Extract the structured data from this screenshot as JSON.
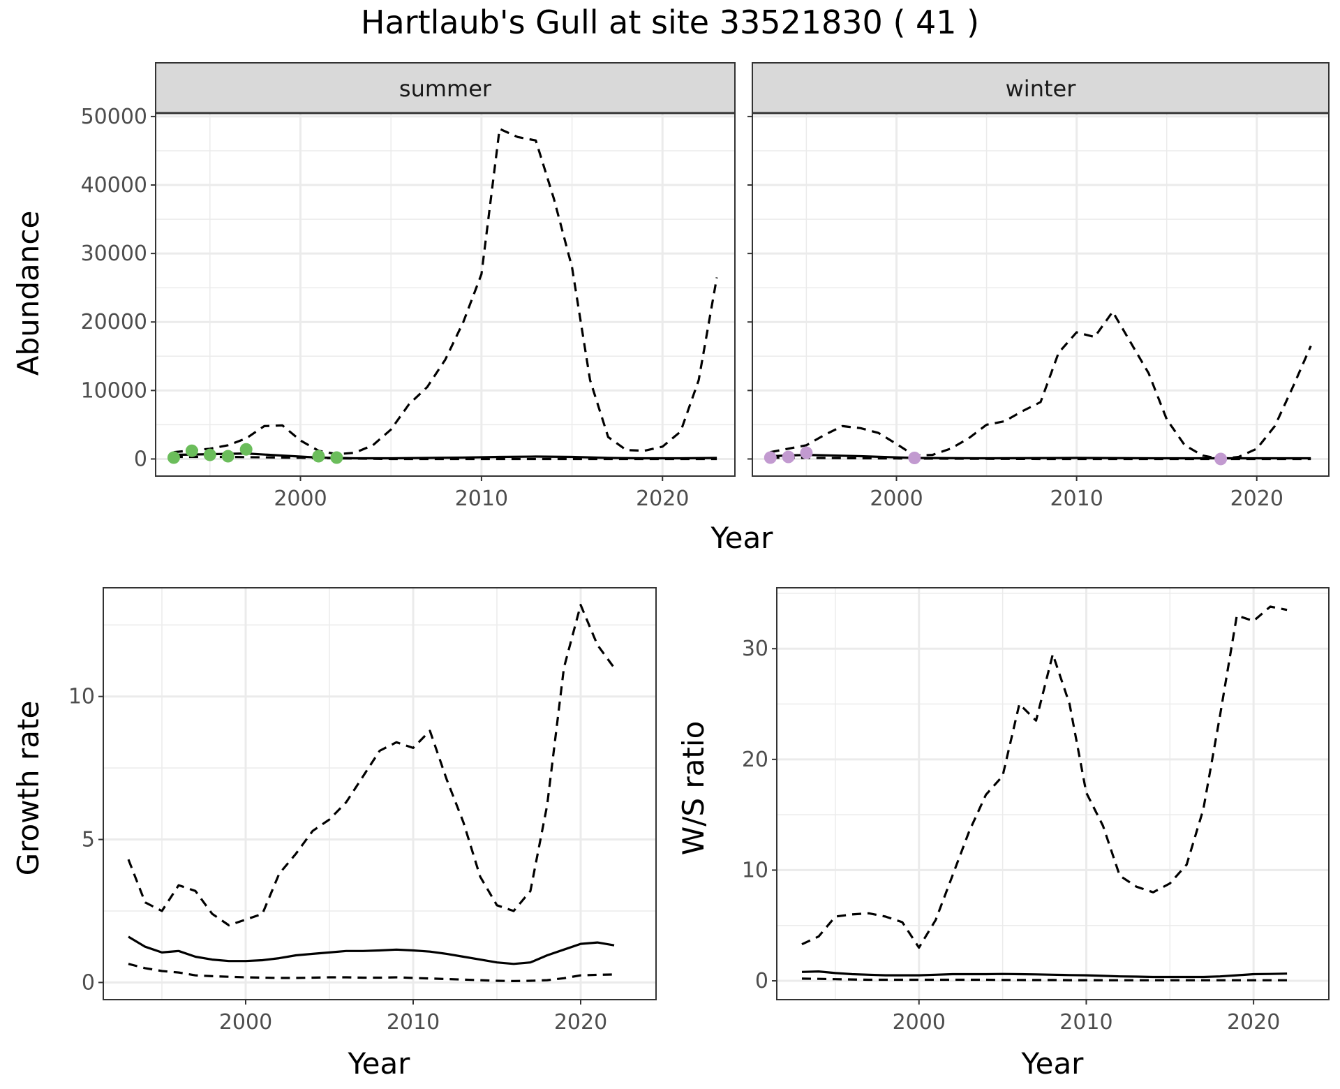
{
  "title": "Hartlaub's Gull at site 33521830 ( 41 )",
  "colors": {
    "summer_points": "#6bbd5b",
    "winter_points": "#c29ad0",
    "line": "#000000",
    "strip_fill": "#d9d9d9",
    "grid": "#ebebeb"
  },
  "chart_data": [
    {
      "type": "line",
      "facet": "summer",
      "xlabel": "Year",
      "ylabel": "Abundance",
      "xlim": [
        1992,
        2024
      ],
      "ylim": [
        -2500,
        50500
      ],
      "x_ticks": [
        2000,
        2010,
        2020
      ],
      "y_ticks": [
        0,
        10000,
        20000,
        30000,
        40000,
        50000
      ],
      "grid": true,
      "series": [
        {
          "style": "solid",
          "x": [
            1993,
            1995,
            1997,
            1999,
            2001,
            2003,
            2005,
            2007,
            2009,
            2011,
            2013,
            2015,
            2017,
            2019,
            2021,
            2023
          ],
          "values": [
            600,
            700,
            800,
            500,
            200,
            100,
            100,
            150,
            200,
            300,
            350,
            300,
            150,
            100,
            100,
            150
          ]
        },
        {
          "style": "dashed",
          "x": [
            1993,
            1995,
            1996,
            1997,
            1998,
            1999,
            2000,
            2001,
            2002,
            2003,
            2004,
            2005,
            2006,
            2007,
            2008,
            2009,
            2010,
            2011,
            2012,
            2013,
            2014,
            2015,
            2016,
            2017,
            2018,
            2019,
            2020,
            2021,
            2022,
            2023
          ],
          "values": [
            1000,
            1500,
            2000,
            3000,
            4800,
            4900,
            2700,
            1200,
            700,
            900,
            2000,
            4300,
            8000,
            10500,
            14500,
            20000,
            27000,
            48200,
            47000,
            46500,
            38000,
            28000,
            11500,
            3200,
            1300,
            1200,
            1800,
            4000,
            11500,
            26500
          ]
        },
        {
          "style": "dashed",
          "x": [
            1993,
            1996,
            1999,
            2002,
            2005,
            2008,
            2011,
            2014,
            2017,
            2020,
            2023
          ],
          "values": [
            300,
            300,
            200,
            100,
            0,
            0,
            0,
            0,
            0,
            0,
            0
          ]
        }
      ],
      "points": {
        "x": [
          1993,
          1994,
          1995,
          1996,
          1997,
          2001,
          2002
        ],
        "values": [
          200,
          1200,
          600,
          400,
          1400,
          400,
          200
        ]
      }
    },
    {
      "type": "line",
      "facet": "winter",
      "xlabel": "Year",
      "ylabel": "Abundance",
      "xlim": [
        1992,
        2024
      ],
      "ylim": [
        -2500,
        50500
      ],
      "x_ticks": [
        2000,
        2010,
        2020
      ],
      "y_ticks": [
        0,
        10000,
        20000,
        30000,
        40000,
        50000
      ],
      "grid": true,
      "series": [
        {
          "style": "solid",
          "x": [
            1993,
            1995,
            1998,
            2001,
            2005,
            2010,
            2015,
            2020,
            2023
          ],
          "values": [
            400,
            600,
            400,
            150,
            100,
            150,
            100,
            100,
            100
          ]
        },
        {
          "style": "dashed",
          "x": [
            1993,
            1995,
            1996,
            1997,
            1998,
            1999,
            2000,
            2001,
            2002,
            2003,
            2004,
            2005,
            2006,
            2007,
            2008,
            2009,
            2010,
            2011,
            2012,
            2013,
            2014,
            2015,
            2016,
            2017,
            2018,
            2019,
            2020,
            2021,
            2022,
            2023
          ],
          "values": [
            1000,
            2000,
            3500,
            4800,
            4500,
            3800,
            2200,
            500,
            600,
            1500,
            3000,
            5000,
            5500,
            7000,
            8300,
            15500,
            18500,
            17800,
            21500,
            17000,
            12500,
            5800,
            2000,
            500,
            0,
            300,
            1500,
            4800,
            10500,
            16500
          ]
        },
        {
          "style": "dashed",
          "x": [
            1993,
            1998,
            2003,
            2008,
            2013,
            2018,
            2023
          ],
          "values": [
            200,
            100,
            50,
            0,
            0,
            0,
            0
          ]
        }
      ],
      "points": {
        "x": [
          1993,
          1994,
          1995,
          2001,
          2018
        ],
        "values": [
          200,
          300,
          900,
          150,
          0
        ]
      }
    },
    {
      "type": "line",
      "xlabel": "Year",
      "ylabel": "Growth rate",
      "xlim": [
        1991.5,
        2024.5
      ],
      "ylim": [
        -0.6,
        13.8
      ],
      "x_ticks": [
        2000,
        2010,
        2020
      ],
      "y_ticks": [
        0,
        5,
        10
      ],
      "grid": true,
      "series": [
        {
          "style": "dashed",
          "x": [
            1993,
            1994,
            1995,
            1996,
            1997,
            1998,
            1999,
            2000,
            2001,
            2002,
            2003,
            2004,
            2005,
            2006,
            2007,
            2008,
            2009,
            2010,
            2011,
            2012,
            2013,
            2014,
            2015,
            2016,
            2017,
            2018,
            2019,
            2020,
            2021,
            2022
          ],
          "values": [
            4.3,
            2.8,
            2.5,
            3.4,
            3.2,
            2.4,
            2.0,
            2.2,
            2.4,
            3.8,
            4.5,
            5.3,
            5.7,
            6.3,
            7.2,
            8.1,
            8.4,
            8.2,
            8.8,
            7.1,
            5.6,
            3.7,
            2.7,
            2.5,
            3.2,
            6.2,
            11.0,
            13.2,
            11.8,
            11.0
          ]
        },
        {
          "style": "solid",
          "x": [
            1993,
            1994,
            1995,
            1996,
            1997,
            1998,
            1999,
            2000,
            2001,
            2002,
            2003,
            2004,
            2005,
            2006,
            2007,
            2008,
            2009,
            2010,
            2011,
            2012,
            2013,
            2014,
            2015,
            2016,
            2017,
            2018,
            2019,
            2020,
            2021,
            2022
          ],
          "values": [
            1.6,
            1.25,
            1.05,
            1.1,
            0.9,
            0.8,
            0.75,
            0.75,
            0.78,
            0.85,
            0.95,
            1.0,
            1.05,
            1.1,
            1.1,
            1.12,
            1.15,
            1.12,
            1.08,
            1.0,
            0.9,
            0.8,
            0.7,
            0.65,
            0.7,
            0.95,
            1.15,
            1.35,
            1.4,
            1.3
          ]
        },
        {
          "style": "dashed",
          "x": [
            1993,
            1994,
            1995,
            1996,
            1997,
            1998,
            1999,
            2000,
            2001,
            2002,
            2003,
            2004,
            2005,
            2006,
            2007,
            2008,
            2009,
            2010,
            2011,
            2012,
            2013,
            2014,
            2015,
            2016,
            2017,
            2018,
            2019,
            2020,
            2021,
            2022
          ],
          "values": [
            0.65,
            0.5,
            0.4,
            0.35,
            0.25,
            0.22,
            0.2,
            0.18,
            0.17,
            0.16,
            0.16,
            0.17,
            0.18,
            0.18,
            0.17,
            0.17,
            0.18,
            0.16,
            0.14,
            0.12,
            0.1,
            0.08,
            0.06,
            0.05,
            0.06,
            0.08,
            0.15,
            0.25,
            0.27,
            0.28
          ]
        }
      ]
    },
    {
      "type": "line",
      "xlabel": "Year",
      "ylabel": "W/S ratio",
      "xlim": [
        1991.5,
        2024.5
      ],
      "ylim": [
        -1.7,
        35.5
      ],
      "x_ticks": [
        2000,
        2010,
        2020
      ],
      "y_ticks": [
        0,
        10,
        20,
        30
      ],
      "grid": true,
      "series": [
        {
          "style": "dashed",
          "x": [
            1993,
            1994,
            1995,
            1996,
            1997,
            1998,
            1999,
            2000,
            2001,
            2002,
            2003,
            2004,
            2005,
            2006,
            2007,
            2008,
            2009,
            2010,
            2011,
            2012,
            2013,
            2014,
            2015,
            2016,
            2017,
            2018,
            2019,
            2020,
            2021,
            2022
          ],
          "values": [
            3.3,
            4.0,
            5.8,
            6.0,
            6.1,
            5.8,
            5.3,
            3.0,
            5.5,
            9.5,
            13.5,
            16.8,
            18.5,
            25.0,
            23.5,
            29.5,
            25.0,
            17.0,
            14.0,
            9.5,
            8.5,
            8.0,
            8.8,
            10.5,
            15.5,
            24.0,
            33.0,
            32.5,
            33.8,
            33.5
          ]
        },
        {
          "style": "solid",
          "x": [
            1993,
            1994,
            1995,
            1996,
            1997,
            1998,
            1999,
            2000,
            2001,
            2002,
            2003,
            2004,
            2005,
            2006,
            2007,
            2008,
            2009,
            2010,
            2011,
            2012,
            2013,
            2014,
            2015,
            2016,
            2017,
            2018,
            2019,
            2020,
            2021,
            2022
          ],
          "values": [
            0.8,
            0.85,
            0.7,
            0.6,
            0.55,
            0.5,
            0.5,
            0.5,
            0.55,
            0.6,
            0.6,
            0.6,
            0.62,
            0.6,
            0.58,
            0.55,
            0.52,
            0.5,
            0.45,
            0.4,
            0.38,
            0.35,
            0.35,
            0.35,
            0.35,
            0.4,
            0.5,
            0.6,
            0.62,
            0.65
          ]
        },
        {
          "style": "dashed",
          "x": [
            1993,
            1994,
            1995,
            1996,
            1997,
            1998,
            1999,
            2000,
            2001,
            2002,
            2003,
            2004,
            2005,
            2006,
            2007,
            2008,
            2009,
            2010,
            2011,
            2012,
            2013,
            2014,
            2015,
            2016,
            2017,
            2018,
            2019,
            2020,
            2021,
            2022
          ],
          "values": [
            0.2,
            0.18,
            0.15,
            0.12,
            0.1,
            0.1,
            0.1,
            0.1,
            0.1,
            0.1,
            0.1,
            0.1,
            0.08,
            0.08,
            0.07,
            0.07,
            0.06,
            0.06,
            0.05,
            0.05,
            0.05,
            0.05,
            0.05,
            0.05,
            0.05,
            0.05,
            0.05,
            0.05,
            0.05,
            0.05
          ]
        }
      ]
    }
  ],
  "labels": {
    "strip_summer": "summer",
    "strip_winter": "winter",
    "top_xlabel": "Year",
    "top_ylabel": "Abundance",
    "bl_xlabel": "Year",
    "bl_ylabel": "Growth rate",
    "br_xlabel": "Year",
    "br_ylabel": "W/S ratio"
  }
}
